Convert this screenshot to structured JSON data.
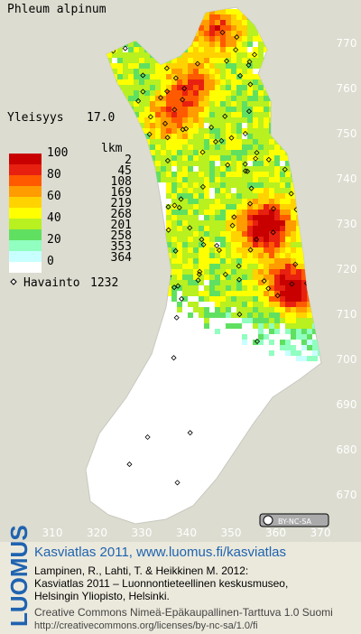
{
  "map": {
    "title": "Phleum alpinum",
    "frequency_label": "Yleisyys",
    "frequency": "17.0",
    "legend": {
      "count_header": "lkm",
      "percent_labels": [
        "100",
        "80",
        "60",
        "40",
        "20",
        "0"
      ],
      "colors": [
        "#c80000",
        "#e82010",
        "#ff5a00",
        "#ff9c00",
        "#ffd200",
        "#ffff00",
        "#b8f020",
        "#60e060",
        "#90ffc0",
        "#c8ffff"
      ],
      "counts": [
        "2",
        "45",
        "108",
        "169",
        "219",
        "268",
        "201",
        "258",
        "353",
        "364"
      ]
    },
    "observations": {
      "label": "Havainto",
      "count": "1232"
    },
    "x_ticks": [
      "310",
      "320",
      "330",
      "340",
      "350",
      "360",
      "370"
    ],
    "y_ticks": [
      "770",
      "760",
      "750",
      "740",
      "730",
      "720",
      "710",
      "700",
      "690",
      "680",
      "670"
    ],
    "license_badge": "BY-NC-SA",
    "footer": {
      "brand": "LUOMUS",
      "heading": "Kasviatlas 2011, www.luomus.fi/kasviatlas",
      "citation": [
        "Lampinen, R., Lahti, T. & Heikkinen M. 2012:",
        "Kasviatlas 2011 – Luonnontieteellinen keskusmuseo,",
        "Helsingin Yliopisto, Helsinki."
      ],
      "license": [
        "Creative Commons Nimeä-Epäkaupallinen-Tarttuva 1.0 Suomi",
        "http://creativecommons.org/licenses/by-nc-sa/1.0/fi"
      ]
    }
  }
}
